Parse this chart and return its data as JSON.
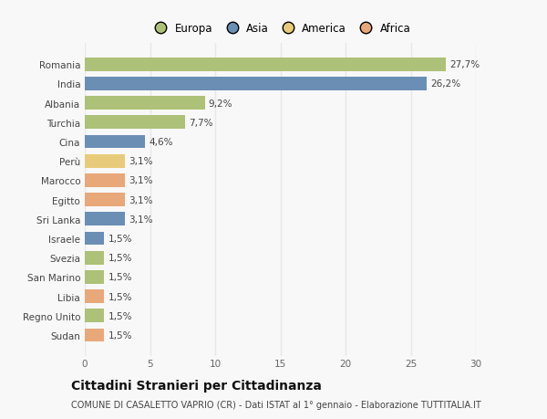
{
  "countries": [
    "Romania",
    "India",
    "Albania",
    "Turchia",
    "Cina",
    "Perù",
    "Marocco",
    "Egitto",
    "Sri Lanka",
    "Israele",
    "Svezia",
    "San Marino",
    "Libia",
    "Regno Unito",
    "Sudan"
  ],
  "values": [
    27.7,
    26.2,
    9.2,
    7.7,
    4.6,
    3.1,
    3.1,
    3.1,
    3.1,
    1.5,
    1.5,
    1.5,
    1.5,
    1.5,
    1.5
  ],
  "labels": [
    "27,7%",
    "26,2%",
    "9,2%",
    "7,7%",
    "4,6%",
    "3,1%",
    "3,1%",
    "3,1%",
    "3,1%",
    "1,5%",
    "1,5%",
    "1,5%",
    "1,5%",
    "1,5%",
    "1,5%"
  ],
  "colors": [
    "#adc178",
    "#6b8eb5",
    "#adc178",
    "#adc178",
    "#6b8eb5",
    "#e8cb7a",
    "#e8a87a",
    "#e8a87a",
    "#6b8eb5",
    "#6b8eb5",
    "#adc178",
    "#adc178",
    "#e8a87a",
    "#adc178",
    "#e8a87a"
  ],
  "continent_colors": {
    "Europa": "#adc178",
    "Asia": "#6b8eb5",
    "America": "#e8cb7a",
    "Africa": "#e8a87a"
  },
  "xlim": [
    0,
    30
  ],
  "xticks": [
    0,
    5,
    10,
    15,
    20,
    25,
    30
  ],
  "title": "Cittadini Stranieri per Cittadinanza",
  "subtitle": "COMUNE DI CASALETTO VAPRIO (CR) - Dati ISTAT al 1° gennaio - Elaborazione TUTTITALIA.IT",
  "background_color": "#f8f8f8",
  "grid_color": "#e8e8e8",
  "bar_height": 0.7,
  "label_fontsize": 7.5,
  "ytick_fontsize": 7.5,
  "xtick_fontsize": 7.5,
  "title_fontsize": 10,
  "subtitle_fontsize": 7,
  "legend_fontsize": 8.5
}
